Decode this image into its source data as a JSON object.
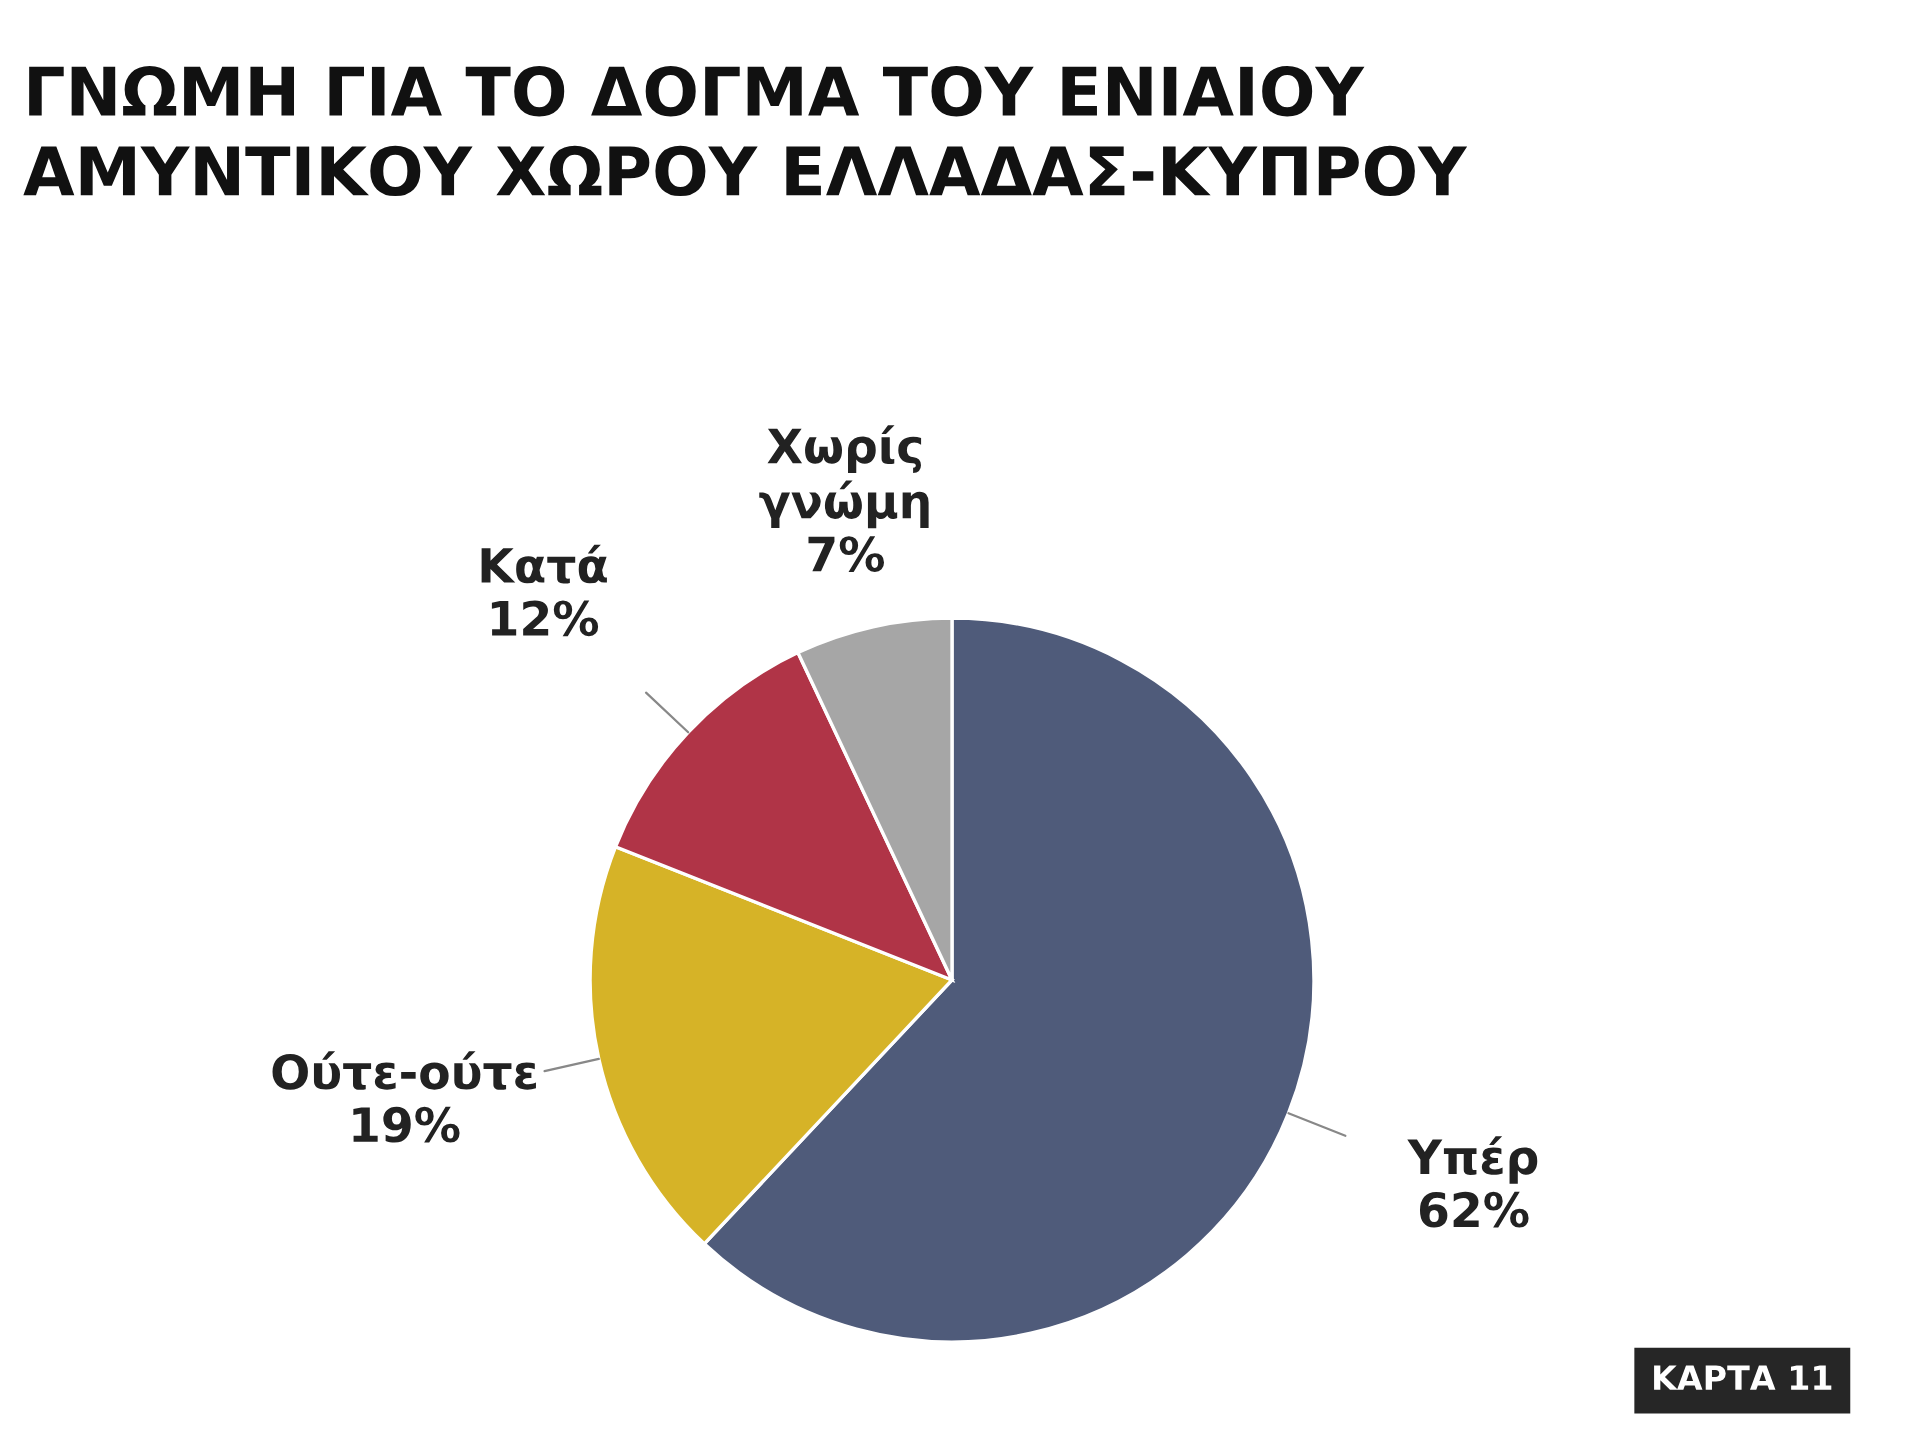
{
  "chart_data": {
    "type": "pie",
    "title": "ΓΝΩΜΗ ΓΙΑ ΤΟ ΔΟΓΜΑ ΤΟΥ ΕΝΙΑΙΟΥ\nΑΜΥΝΤΙΚΟΥ ΧΩΡΟΥ ΕΛΛΑΔΑΣ-ΚΥΠΡΟΥ",
    "categories": [
      "Υπέρ",
      "Ούτε-ούτε",
      "Κατά",
      "Χωρίς γνώμη"
    ],
    "values": [
      62,
      19,
      12,
      7
    ],
    "value_labels": [
      "62%",
      "19%",
      "12%",
      "7%"
    ],
    "colors": [
      "#4f5b7a",
      "#d6b327",
      "#b03447",
      "#a6a6a6"
    ],
    "annotations": [
      "ΚΑΡΤΑ 11"
    ]
  }
}
